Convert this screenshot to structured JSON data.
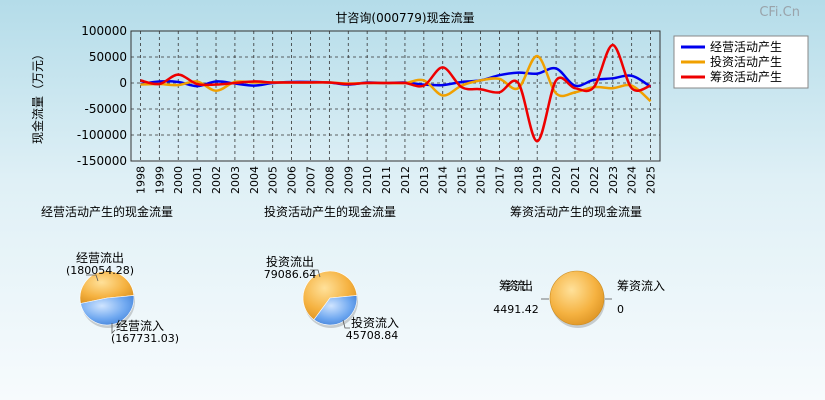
{
  "watermark": "CFi.Cn",
  "chart_data": [
    {
      "type": "line",
      "title": "甘咨询(000779)现金流量",
      "ylabel": "现金流量（万元）",
      "ylim": [
        -150000,
        100000
      ],
      "yticks": [
        100000,
        50000,
        0,
        -50000,
        -100000,
        -150000
      ],
      "grid": true,
      "legend_position": "top-right",
      "x": [
        "1998",
        "1999",
        "2000",
        "2001",
        "2002",
        "2003",
        "2004",
        "2005",
        "2006",
        "2007",
        "2008",
        "2009",
        "2010",
        "2011",
        "2012",
        "2013",
        "2014",
        "2015",
        "2016",
        "2017",
        "2018",
        "2019",
        "2020",
        "2021",
        "2022",
        "2023",
        "2024",
        "2025"
      ],
      "series": [
        {
          "name": "经营活动产生",
          "color": "#0000ee",
          "values": [
            -2000,
            3000,
            2000,
            -6000,
            3000,
            -1000,
            -5000,
            0,
            2000,
            2000,
            1000,
            -3000,
            1000,
            0,
            1000,
            -3000,
            -4000,
            2000,
            5000,
            15000,
            20000,
            18000,
            28000,
            -5000,
            6000,
            9000,
            14000,
            -7000
          ]
        },
        {
          "name": "投资活动产生",
          "color": "#f0a000",
          "values": [
            -3000,
            -2000,
            -4000,
            3000,
            -15000,
            2000,
            1000,
            1000,
            1000,
            1000,
            1000,
            -1000,
            0,
            0,
            0,
            5000,
            -24000,
            -5000,
            5000,
            8000,
            -10000,
            52000,
            -20000,
            -18000,
            -8000,
            -10000,
            -5000,
            -35000
          ]
        },
        {
          "name": "筹资活动产生",
          "color": "#ee0000",
          "values": [
            5000,
            -2000,
            16000,
            -2000,
            -3000,
            0,
            3000,
            1000,
            1000,
            1000,
            1000,
            -2000,
            0,
            0,
            0,
            -5000,
            30000,
            -8000,
            -12000,
            -18000,
            0,
            -112000,
            5000,
            -10000,
            -8000,
            73000,
            -10000,
            -5000
          ]
        }
      ]
    },
    {
      "type": "pie",
      "title": "经营活动产生的现金流量",
      "slices": [
        {
          "label": "经营流出",
          "value": 180054.28,
          "display": "(180054.28)"
        },
        {
          "label": "经营流入",
          "value": 167731.03,
          "display": "(167731.03)"
        }
      ]
    },
    {
      "type": "pie",
      "title": "投资活动产生的现金流量",
      "slices": [
        {
          "label": "投资流出",
          "value": 79086.64,
          "display": "79086.64"
        },
        {
          "label": "投资流入",
          "value": 45708.84,
          "display": "45708.84"
        }
      ]
    },
    {
      "type": "pie",
      "title": "筹资活动产生的现金流量",
      "slices": [
        {
          "label": "筹资流出",
          "value": 4491.42,
          "display": "4491.42"
        },
        {
          "label": "筹资流入",
          "value": 0,
          "display": "0"
        }
      ]
    }
  ]
}
